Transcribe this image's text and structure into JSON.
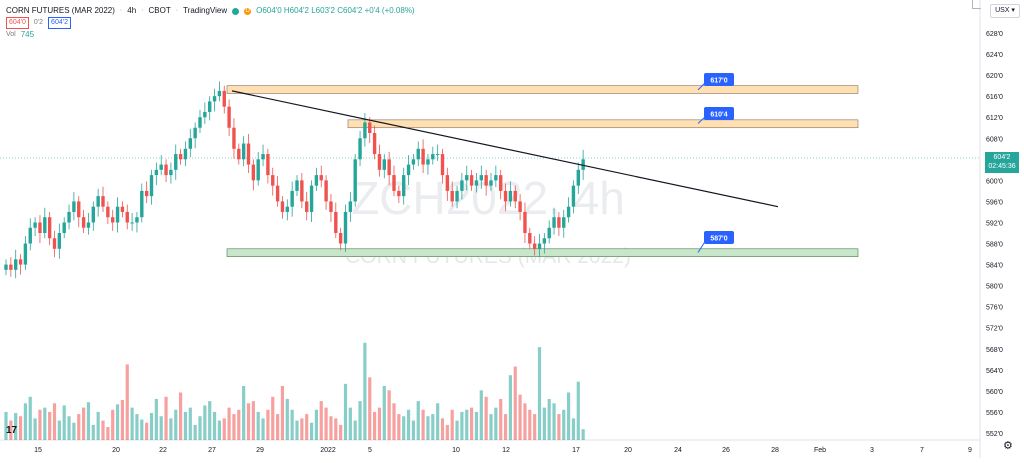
{
  "header": {
    "symbol": "CORN FUTURES (MAR 2022)",
    "interval": "4h",
    "exchange": "CBOT",
    "source": "TradingView",
    "ohlc": {
      "o": "O604'0",
      "h": "H604'2",
      "l": "L603'2",
      "c": "C604'2",
      "chg": "+0'4 (+0.08%)"
    },
    "sell_price": "604'0",
    "spread": "0'2",
    "buy_price": "604'2",
    "volume_label": "Vol",
    "volume_value": "745"
  },
  "currency": "USX",
  "watermark": {
    "ticker": "ZCH2022, 4h",
    "name": "CORN FUTURES (MAR 2022)"
  },
  "last_price": {
    "value": "604'2",
    "countdown": "02:45:36"
  },
  "tv_logo": "17",
  "colors": {
    "up": "#26a69a",
    "down": "#ef5350",
    "vol_up": "#26a69a",
    "vol_down": "#ef5350",
    "resistance_zone": "#ffe0b2",
    "support_zone": "#c8e6c9",
    "callout": "#2962ff"
  },
  "chart_data": {
    "type": "candlestick",
    "y_axis": {
      "ticks": [
        628,
        624,
        620,
        616,
        612,
        608,
        604,
        600,
        596,
        592,
        588,
        584,
        580,
        576,
        572,
        568,
        564,
        560,
        556,
        552
      ],
      "tick_labels": [
        "628'0",
        "624'0",
        "620'0",
        "616'0",
        "612'0",
        "608'0",
        "604'0",
        "600'0",
        "596'0",
        "592'0",
        "588'0",
        "584'0",
        "580'0",
        "576'0",
        "572'0",
        "568'0",
        "564'0",
        "560'0",
        "556'0",
        "552'0"
      ]
    },
    "x_axis": {
      "tick_labels": [
        "15",
        "20",
        "22",
        "27",
        "29",
        "2022",
        "5",
        "10",
        "12",
        "17",
        "20",
        "24",
        "26",
        "28",
        "Feb",
        "3",
        "7",
        "9"
      ]
    },
    "candles_close": [
      584,
      583,
      585,
      584,
      588,
      591,
      592,
      590,
      593,
      589,
      587,
      590,
      592,
      594,
      596,
      593,
      591,
      592,
      595,
      597,
      595,
      593,
      592,
      595,
      594,
      592,
      592,
      593,
      598,
      597,
      601,
      602,
      603,
      601,
      602,
      605,
      604,
      606,
      608,
      610,
      612,
      613,
      615,
      616,
      617,
      614,
      610,
      606,
      604,
      607,
      603,
      600,
      604,
      605,
      601,
      599,
      596,
      594,
      595,
      598,
      600,
      596,
      594,
      599,
      601,
      600,
      596,
      594,
      590,
      588,
      594,
      596,
      604,
      608,
      611,
      609,
      605,
      602,
      604,
      601,
      598,
      597,
      601,
      603,
      604,
      606,
      603,
      604,
      605,
      605,
      601,
      598,
      596,
      598,
      600,
      601,
      599,
      600,
      601,
      599,
      600,
      601,
      598,
      596,
      598,
      596,
      594,
      590,
      588,
      587,
      588,
      589,
      591,
      593,
      591,
      593,
      595,
      599,
      602,
      604
    ],
    "volume": [
      26,
      18,
      25,
      22,
      34,
      40,
      20,
      28,
      30,
      26,
      34,
      18,
      32,
      22,
      16,
      24,
      30,
      35,
      14,
      26,
      18,
      12,
      28,
      33,
      37,
      70,
      30,
      24,
      19,
      16,
      25,
      38,
      22,
      40,
      20,
      28,
      44,
      26,
      30,
      14,
      22,
      32,
      36,
      26,
      18,
      20,
      30,
      24,
      28,
      50,
      34,
      36,
      26,
      20,
      28,
      40,
      24,
      50,
      38,
      28,
      18,
      20,
      24,
      16,
      28,
      36,
      30,
      22,
      20,
      14,
      52,
      30,
      18,
      36,
      90,
      58,
      26,
      30,
      50,
      46,
      34,
      24,
      22,
      28,
      18,
      36,
      28,
      22,
      24,
      34,
      20,
      14,
      28,
      18,
      26,
      28,
      30,
      26,
      46,
      40,
      24,
      30,
      38,
      24,
      60,
      68,
      42,
      34,
      28,
      24,
      86,
      30,
      38,
      34,
      24,
      28,
      44,
      20,
      54,
      10
    ],
    "resistance_zones": [
      {
        "from": 616.5,
        "to": 618.0,
        "label": "617'0"
      },
      {
        "from": 610.0,
        "to": 611.5,
        "label": "610'4"
      }
    ],
    "support_zones": [
      {
        "from": 585.5,
        "to": 587.0,
        "label": "587'0"
      }
    ],
    "trendline": {
      "from": {
        "bar": 44,
        "price": 617
      },
      "to": {
        "bar": 164,
        "price": 595
      }
    }
  }
}
